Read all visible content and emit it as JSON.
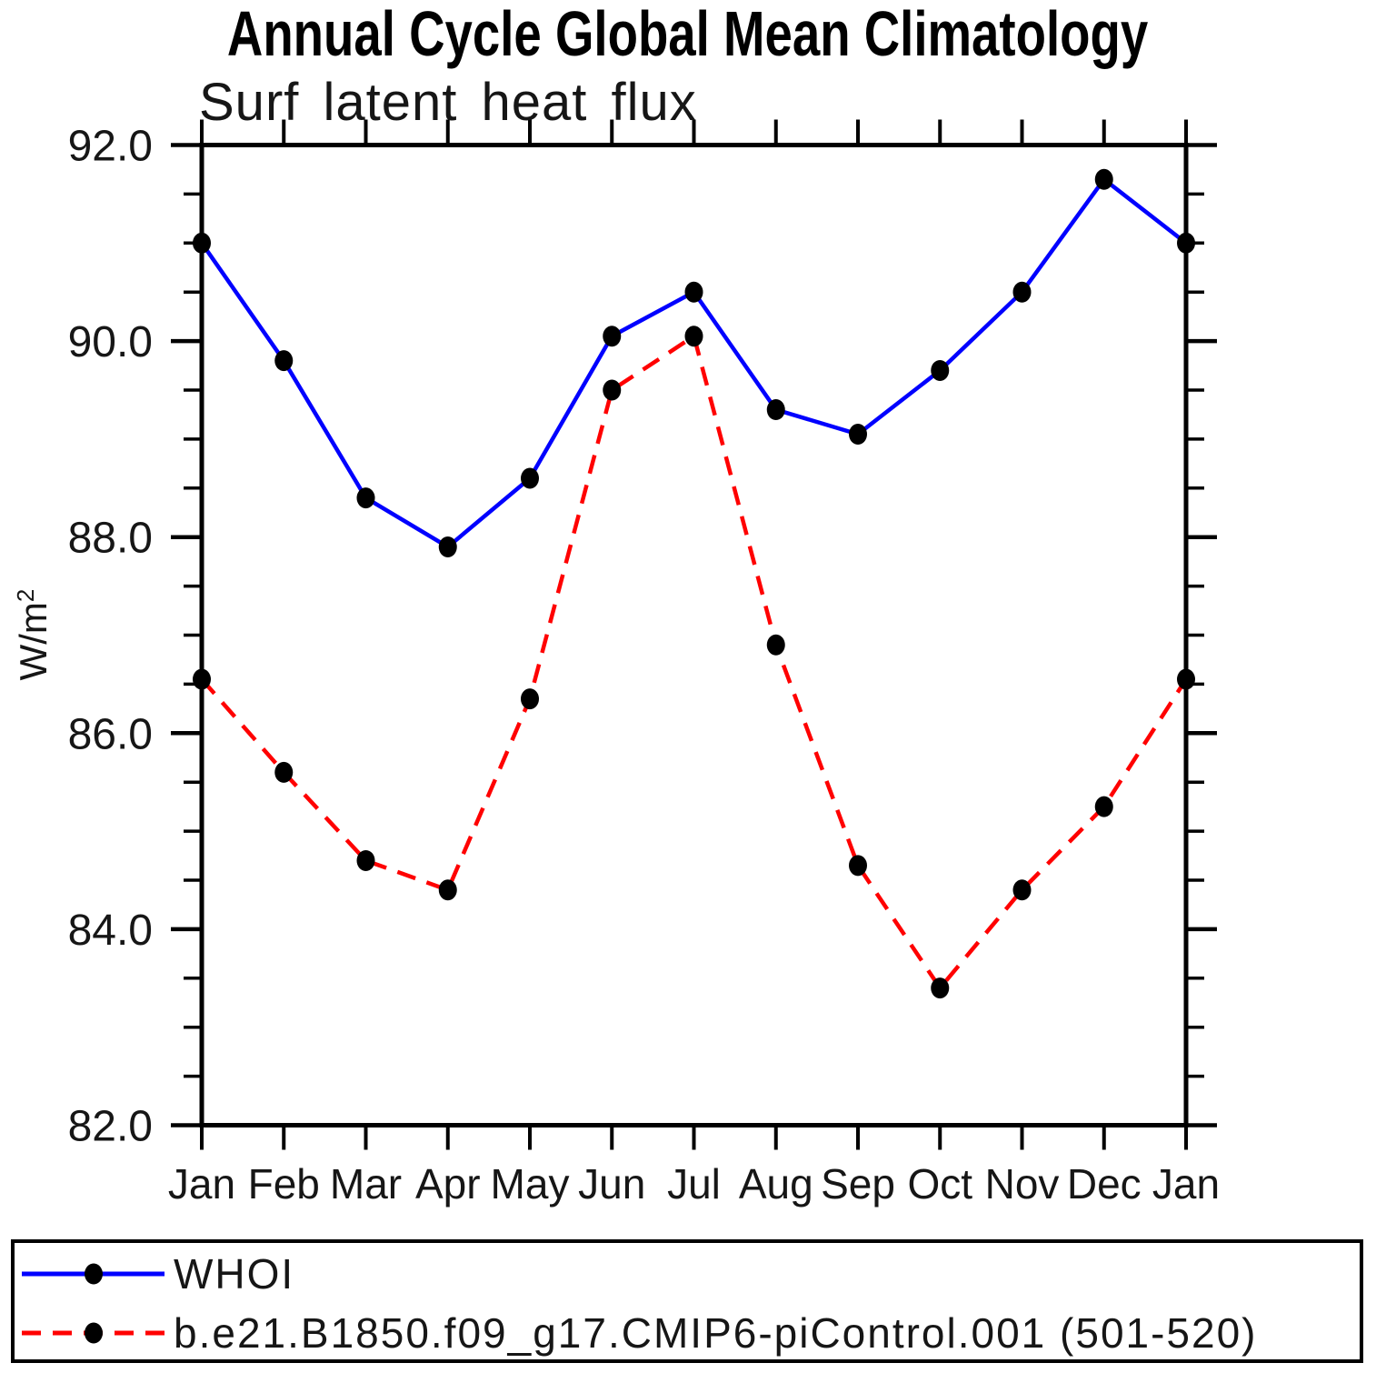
{
  "title": "Annual Cycle Global Mean Climatology",
  "subtitle": "Surf latent heat flux",
  "y_axis": {
    "label": "W/m",
    "exponent": "2",
    "tick_labels": [
      "92.0",
      "90.0",
      "88.0",
      "86.0",
      "84.0",
      "82.0"
    ]
  },
  "x_axis": {
    "tick_labels": [
      "Jan",
      "Feb",
      "Mar",
      "Apr",
      "May",
      "Jun",
      "Jul",
      "Aug",
      "Sep",
      "Oct",
      "Nov",
      "Dec",
      "Jan"
    ]
  },
  "legend": {
    "entries": [
      {
        "label": "WHOI"
      },
      {
        "label": "b.e21.B1850.f09_g17.CMIP6-piControl.001 (501-520)"
      }
    ]
  },
  "colors": {
    "whoi_line": "#0000ff",
    "model_line": "#ff0000",
    "marker": "#000000",
    "axis": "#000000"
  },
  "chart_data": {
    "type": "line",
    "title": "Annual Cycle Global Mean Climatology",
    "subtitle": "Surf latent heat flux",
    "ylabel": "W/m2",
    "categories": [
      "Jan",
      "Feb",
      "Mar",
      "Apr",
      "May",
      "Jun",
      "Jul",
      "Aug",
      "Sep",
      "Oct",
      "Nov",
      "Dec",
      "Jan"
    ],
    "series": [
      {
        "name": "WHOI",
        "style": "solid",
        "color": "#0000ff",
        "values": [
          91.0,
          89.8,
          88.4,
          87.9,
          88.6,
          90.05,
          90.5,
          89.3,
          89.05,
          89.7,
          90.5,
          91.65,
          91.0
        ]
      },
      {
        "name": "b.e21.B1850.f09_g17.CMIP6-piControl.001 (501-520)",
        "style": "dashed",
        "color": "#ff0000",
        "values": [
          86.55,
          85.6,
          84.7,
          84.4,
          86.35,
          89.5,
          90.05,
          86.9,
          84.65,
          83.4,
          84.4,
          85.25,
          86.55
        ]
      }
    ],
    "ylim": [
      82.0,
      92.0
    ],
    "y_major_step": 2.0,
    "y_minor_step": 0.5,
    "grid": false,
    "marker_color": "#000000",
    "legend_position": "bottom"
  }
}
